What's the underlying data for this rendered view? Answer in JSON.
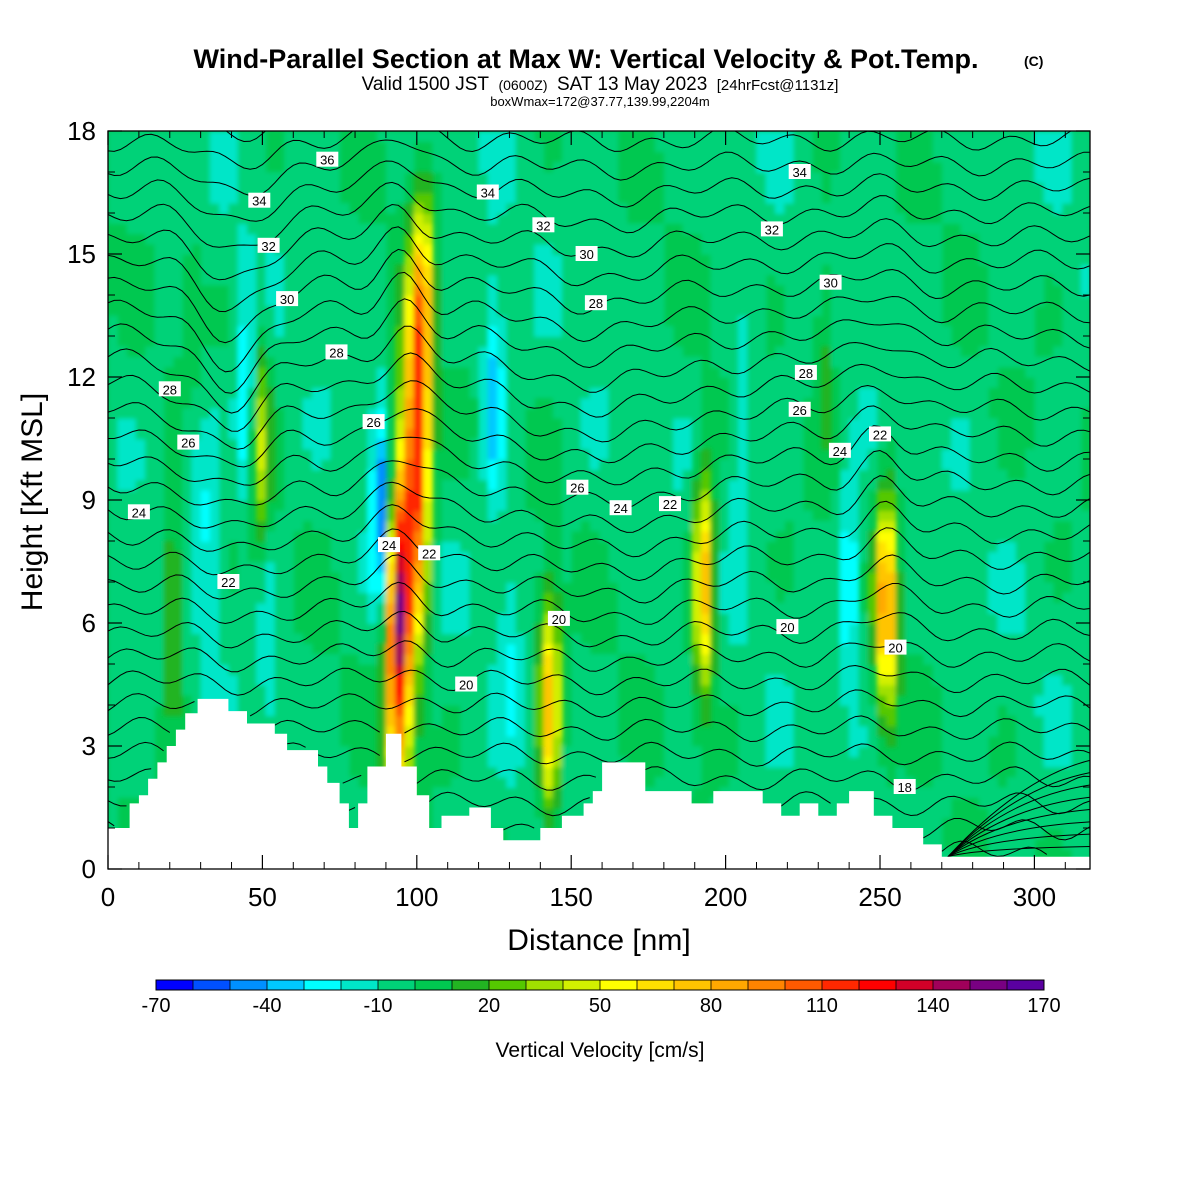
{
  "header": {
    "title_main": "Wind-Parallel Section at Max W: Vertical Velocity & Pot.Temp.",
    "title_mark": "(C)",
    "sub_a": "Valid 1500 JST",
    "sub_b": "(0600Z)",
    "sub_c": "SAT 13 May 2023",
    "sub_d": "[24hrFcst@1131z]",
    "info": "boxWmax=172@37.77,139.99,2204m"
  },
  "chart_data": {
    "type": "heatmap",
    "title": "Wind-Parallel Section at Max W: Vertical Velocity & Pot.Temp.",
    "xlabel": "Distance [nm]",
    "ylabel": "Height [Kft MSL]",
    "xlim": [
      0,
      318
    ],
    "ylim": [
      0,
      18
    ],
    "x_ticks": [
      0,
      50,
      100,
      150,
      200,
      250,
      300
    ],
    "y_ticks": [
      0,
      3,
      6,
      9,
      12,
      15,
      18
    ],
    "colorbar": {
      "label": "Vertical Velocity [cm/s]",
      "min": -70,
      "max": 170,
      "step": 10,
      "tick_values": [
        -70,
        -40,
        -10,
        20,
        50,
        80,
        110,
        140,
        170
      ],
      "colors": [
        "#0000ff",
        "#0050ff",
        "#0090ff",
        "#00c8ff",
        "#00ffff",
        "#00e6c8",
        "#00d278",
        "#00c850",
        "#22b422",
        "#55c800",
        "#a0e000",
        "#d2f000",
        "#ffff00",
        "#ffe000",
        "#ffc400",
        "#ffa800",
        "#ff8400",
        "#ff5a00",
        "#ff2800",
        "#ff0000",
        "#d20028",
        "#a0005a",
        "#780082",
        "#5a00a0"
      ]
    },
    "terrain": [
      [
        0,
        1
      ],
      [
        7,
        1
      ],
      [
        7,
        1.6
      ],
      [
        10,
        1.6
      ],
      [
        10,
        1.8
      ],
      [
        13,
        1.8
      ],
      [
        13,
        2.2
      ],
      [
        16,
        2.2
      ],
      [
        16,
        2.6
      ],
      [
        19,
        2.6
      ],
      [
        19,
        3.0
      ],
      [
        22,
        3.0
      ],
      [
        22,
        3.4
      ],
      [
        25,
        3.4
      ],
      [
        25,
        3.8
      ],
      [
        29,
        3.8
      ],
      [
        29,
        4.15
      ],
      [
        39,
        4.15
      ],
      [
        39,
        3.85
      ],
      [
        45,
        3.85
      ],
      [
        45,
        3.55
      ],
      [
        54,
        3.55
      ],
      [
        54,
        3.3
      ],
      [
        58,
        3.3
      ],
      [
        58,
        2.9
      ],
      [
        68,
        2.9
      ],
      [
        68,
        2.5
      ],
      [
        71,
        2.5
      ],
      [
        71,
        2.1
      ],
      [
        75,
        2.1
      ],
      [
        75,
        1.6
      ],
      [
        78,
        1.6
      ],
      [
        78,
        1.0
      ],
      [
        81,
        1.0
      ],
      [
        81,
        1.6
      ],
      [
        84,
        1.6
      ],
      [
        84,
        2.5
      ],
      [
        90,
        2.5
      ],
      [
        90,
        3.3
      ],
      [
        95,
        3.3
      ],
      [
        95,
        2.5
      ],
      [
        100,
        2.5
      ],
      [
        100,
        1.8
      ],
      [
        104,
        1.8
      ],
      [
        104,
        1.0
      ],
      [
        108,
        1.0
      ],
      [
        108,
        1.3
      ],
      [
        117,
        1.3
      ],
      [
        117,
        1.5
      ],
      [
        124,
        1.5
      ],
      [
        124,
        1.0
      ],
      [
        128,
        1.0
      ],
      [
        128,
        0.7
      ],
      [
        140,
        0.7
      ],
      [
        140,
        1.0
      ],
      [
        147,
        1.0
      ],
      [
        147,
        1.3
      ],
      [
        154,
        1.3
      ],
      [
        154,
        1.6
      ],
      [
        157,
        1.6
      ],
      [
        157,
        1.9
      ],
      [
        160,
        1.9
      ],
      [
        160,
        2.6
      ],
      [
        174,
        2.6
      ],
      [
        174,
        1.9
      ],
      [
        189,
        1.9
      ],
      [
        189,
        1.6
      ],
      [
        196,
        1.6
      ],
      [
        196,
        1.9
      ],
      [
        212,
        1.9
      ],
      [
        212,
        1.6
      ],
      [
        218,
        1.6
      ],
      [
        218,
        1.3
      ],
      [
        224,
        1.3
      ],
      [
        224,
        1.6
      ],
      [
        230,
        1.6
      ],
      [
        230,
        1.3
      ],
      [
        236,
        1.3
      ],
      [
        236,
        1.6
      ],
      [
        240,
        1.6
      ],
      [
        240,
        1.9
      ],
      [
        248,
        1.9
      ],
      [
        248,
        1.3
      ],
      [
        254,
        1.3
      ],
      [
        254,
        1.0
      ],
      [
        264,
        1.0
      ],
      [
        264,
        0.6
      ],
      [
        270,
        0.6
      ],
      [
        270,
        0.3
      ],
      [
        318,
        0.3
      ]
    ],
    "updrafts": [
      {
        "x": 21,
        "z": 6.5,
        "w": 35
      },
      {
        "x": 27,
        "z": 12.5,
        "w": 25
      },
      {
        "x": 49,
        "z": 10.5,
        "w": 45
      },
      {
        "x": 94,
        "z": 6.0,
        "w": 150
      },
      {
        "x": 100,
        "z": 10.0,
        "w": 120
      },
      {
        "x": 102,
        "z": 14.0,
        "w": 60
      },
      {
        "x": 143,
        "z": 4.0,
        "w": 80
      },
      {
        "x": 193,
        "z": 7.0,
        "w": 85
      },
      {
        "x": 252,
        "z": 6.5,
        "w": 95
      },
      {
        "x": 232,
        "z": 13.0,
        "w": 20
      }
    ],
    "downdrafts": [
      {
        "x": 27,
        "z": 11.0,
        "w": -25
      },
      {
        "x": 45,
        "z": 11.5,
        "w": -35
      },
      {
        "x": 52,
        "z": 5.5,
        "w": -15
      },
      {
        "x": 89,
        "z": 8.5,
        "w": -60
      },
      {
        "x": 125,
        "z": 11.5,
        "w": -35
      },
      {
        "x": 130,
        "z": 5.5,
        "w": -15
      },
      {
        "x": 205,
        "z": 10.5,
        "w": -20
      },
      {
        "x": 240,
        "z": 7.0,
        "w": -30
      },
      {
        "x": 33,
        "z": 8.5,
        "w": -20
      }
    ],
    "isentropes": {
      "theta_min": 14,
      "theta_max": 48,
      "step": 0.5
    },
    "contour_labels": [
      {
        "text": "36",
        "x": 71,
        "z": 17.3
      },
      {
        "text": "34",
        "x": 49,
        "z": 16.3
      },
      {
        "text": "34",
        "x": 123,
        "z": 16.5
      },
      {
        "text": "34",
        "x": 224,
        "z": 17.0
      },
      {
        "text": "32",
        "x": 52,
        "z": 15.2
      },
      {
        "text": "32",
        "x": 141,
        "z": 15.7
      },
      {
        "text": "32",
        "x": 215,
        "z": 15.6
      },
      {
        "text": "30",
        "x": 58,
        "z": 13.9
      },
      {
        "text": "30",
        "x": 155,
        "z": 15.0
      },
      {
        "text": "30",
        "x": 234,
        "z": 14.3
      },
      {
        "text": "28",
        "x": 20,
        "z": 11.7
      },
      {
        "text": "28",
        "x": 74,
        "z": 12.6
      },
      {
        "text": "28",
        "x": 158,
        "z": 13.8
      },
      {
        "text": "28",
        "x": 226,
        "z": 12.1
      },
      {
        "text": "26",
        "x": 26,
        "z": 10.4
      },
      {
        "text": "26",
        "x": 86,
        "z": 10.9
      },
      {
        "text": "26",
        "x": 152,
        "z": 9.3
      },
      {
        "text": "26",
        "x": 224,
        "z": 11.2
      },
      {
        "text": "24",
        "x": 10,
        "z": 8.7
      },
      {
        "text": "24",
        "x": 91,
        "z": 7.9
      },
      {
        "text": "24",
        "x": 166,
        "z": 8.8
      },
      {
        "text": "24",
        "x": 237,
        "z": 10.2
      },
      {
        "text": "22",
        "x": 39,
        "z": 7.0
      },
      {
        "text": "22",
        "x": 104,
        "z": 7.7
      },
      {
        "text": "22",
        "x": 182,
        "z": 8.9
      },
      {
        "text": "22",
        "x": 250,
        "z": 10.6
      },
      {
        "text": "20",
        "x": 146,
        "z": 6.1
      },
      {
        "text": "20",
        "x": 116,
        "z": 4.5
      },
      {
        "text": "20",
        "x": 220,
        "z": 5.9
      },
      {
        "text": "20",
        "x": 255,
        "z": 5.4
      },
      {
        "text": "18",
        "x": 258,
        "z": 2.0
      }
    ]
  }
}
